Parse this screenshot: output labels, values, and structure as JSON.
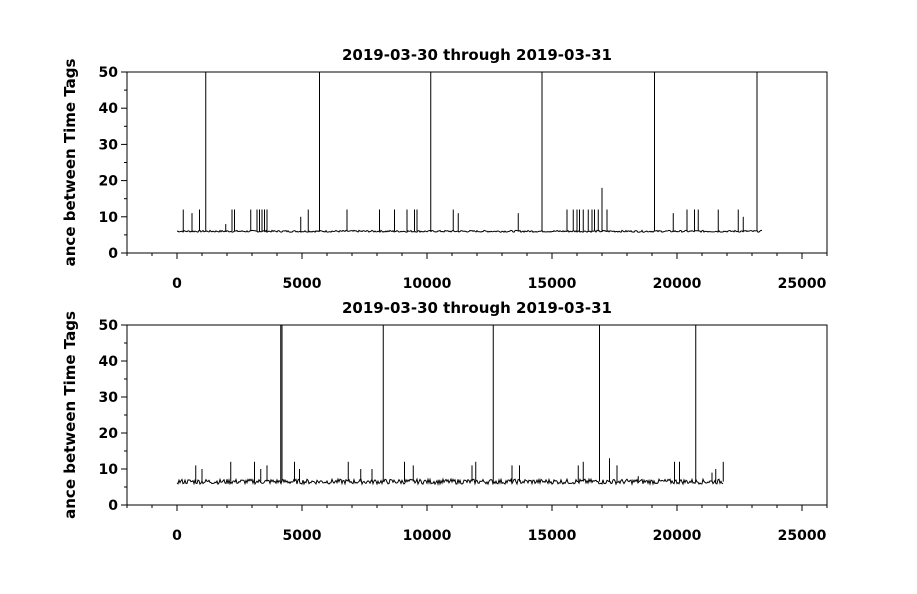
{
  "chart_data": [
    {
      "type": "line",
      "title": "2019-03-30 through 2019-03-31",
      "ylabel": "ance between Time Tags",
      "xlabel": "",
      "xlim": [
        -2000,
        26000
      ],
      "ylim": [
        0,
        50
      ],
      "xticks": [
        0,
        5000,
        10000,
        15000,
        20000,
        25000
      ],
      "yticks": [
        0,
        10,
        20,
        30,
        40,
        50
      ],
      "x_range": [
        0,
        23400
      ],
      "baseline": 6,
      "spikes": [
        {
          "x": 1150,
          "y": 50
        },
        {
          "x": 5700,
          "y": 50
        },
        {
          "x": 10150,
          "y": 50
        },
        {
          "x": 14600,
          "y": 50
        },
        {
          "x": 19100,
          "y": 50
        },
        {
          "x": 23200,
          "y": 50
        },
        {
          "x": 250,
          "y": 12
        },
        {
          "x": 600,
          "y": 11
        },
        {
          "x": 900,
          "y": 12
        },
        {
          "x": 1950,
          "y": 8
        },
        {
          "x": 2200,
          "y": 12
        },
        {
          "x": 2300,
          "y": 12
        },
        {
          "x": 2950,
          "y": 12
        },
        {
          "x": 3200,
          "y": 12
        },
        {
          "x": 3300,
          "y": 12
        },
        {
          "x": 3400,
          "y": 12
        },
        {
          "x": 3500,
          "y": 12
        },
        {
          "x": 3600,
          "y": 12
        },
        {
          "x": 4950,
          "y": 10
        },
        {
          "x": 5250,
          "y": 12
        },
        {
          "x": 6800,
          "y": 12
        },
        {
          "x": 8100,
          "y": 12
        },
        {
          "x": 8700,
          "y": 12
        },
        {
          "x": 9200,
          "y": 12
        },
        {
          "x": 9500,
          "y": 12
        },
        {
          "x": 9600,
          "y": 12
        },
        {
          "x": 11050,
          "y": 12
        },
        {
          "x": 11250,
          "y": 11
        },
        {
          "x": 13650,
          "y": 11
        },
        {
          "x": 15600,
          "y": 12
        },
        {
          "x": 15850,
          "y": 12
        },
        {
          "x": 16000,
          "y": 12
        },
        {
          "x": 16100,
          "y": 12
        },
        {
          "x": 16250,
          "y": 12
        },
        {
          "x": 16450,
          "y": 12
        },
        {
          "x": 16600,
          "y": 12
        },
        {
          "x": 16700,
          "y": 12
        },
        {
          "x": 16850,
          "y": 12
        },
        {
          "x": 17000,
          "y": 18
        },
        {
          "x": 17200,
          "y": 12
        },
        {
          "x": 19850,
          "y": 11
        },
        {
          "x": 20400,
          "y": 12
        },
        {
          "x": 20700,
          "y": 12
        },
        {
          "x": 20850,
          "y": 12
        },
        {
          "x": 21650,
          "y": 12
        },
        {
          "x": 22450,
          "y": 12
        },
        {
          "x": 22650,
          "y": 10
        }
      ]
    },
    {
      "type": "line",
      "title": "2019-03-30 through 2019-03-31",
      "ylabel": "ance between Time Tags",
      "xlabel": "",
      "xlim": [
        -2000,
        26000
      ],
      "ylim": [
        0,
        50
      ],
      "xticks": [
        0,
        5000,
        10000,
        15000,
        20000,
        25000
      ],
      "yticks": [
        0,
        10,
        20,
        30,
        40,
        50
      ],
      "x_range": [
        0,
        21850
      ],
      "baseline": 6.5,
      "spikes": [
        {
          "x": 4150,
          "y": 50
        },
        {
          "x": 4200,
          "y": 50
        },
        {
          "x": 8250,
          "y": 50
        },
        {
          "x": 12650,
          "y": 50
        },
        {
          "x": 16900,
          "y": 50
        },
        {
          "x": 20750,
          "y": 50
        },
        {
          "x": 750,
          "y": 11
        },
        {
          "x": 1000,
          "y": 10
        },
        {
          "x": 2150,
          "y": 12
        },
        {
          "x": 3100,
          "y": 12
        },
        {
          "x": 3350,
          "y": 10
        },
        {
          "x": 3600,
          "y": 11
        },
        {
          "x": 4700,
          "y": 12
        },
        {
          "x": 4900,
          "y": 10
        },
        {
          "x": 6850,
          "y": 12
        },
        {
          "x": 7350,
          "y": 10
        },
        {
          "x": 7800,
          "y": 10
        },
        {
          "x": 9100,
          "y": 12
        },
        {
          "x": 9450,
          "y": 11
        },
        {
          "x": 11800,
          "y": 11
        },
        {
          "x": 11950,
          "y": 12
        },
        {
          "x": 13400,
          "y": 11
        },
        {
          "x": 13700,
          "y": 11
        },
        {
          "x": 16050,
          "y": 11
        },
        {
          "x": 16250,
          "y": 12
        },
        {
          "x": 17300,
          "y": 13
        },
        {
          "x": 17600,
          "y": 11
        },
        {
          "x": 18450,
          "y": 8
        },
        {
          "x": 19900,
          "y": 12
        },
        {
          "x": 20100,
          "y": 12
        },
        {
          "x": 21400,
          "y": 9
        },
        {
          "x": 21550,
          "y": 10
        },
        {
          "x": 21850,
          "y": 12
        }
      ]
    }
  ]
}
